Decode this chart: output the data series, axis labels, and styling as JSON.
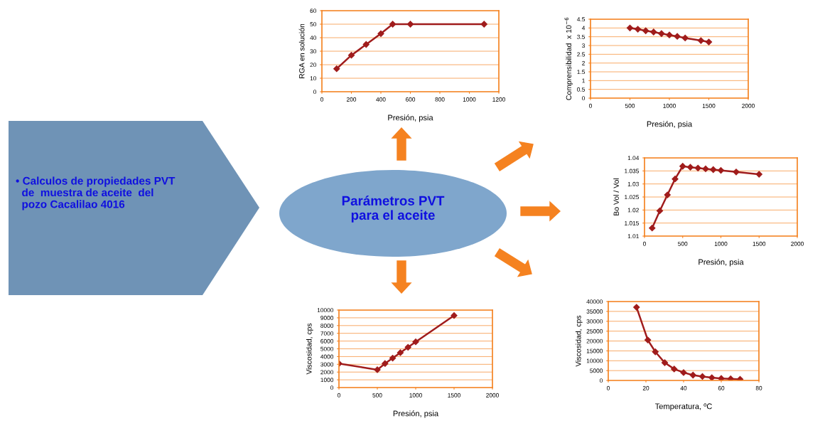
{
  "chart_data": [
    {
      "type": "other",
      "annotations": [
        "• Calculos de propiedades PVT\n  de  muestra de aceite  del\n  pozo Cacalilao 4016",
        "Parámetros PVT\npara el aceite"
      ]
    },
    {
      "type": "line",
      "xlabel": "Presión, psia",
      "ylabel": "RGA en solución",
      "x": [
        100,
        200,
        300,
        400,
        480,
        600,
        1100
      ],
      "values": [
        17,
        27,
        35,
        43,
        50,
        50,
        50
      ],
      "color": "#a01c1c",
      "marker": "diamond",
      "xlim": [
        0,
        1200
      ],
      "xticks": [
        0,
        200,
        400,
        600,
        800,
        1000,
        1200
      ],
      "ylim": [
        0,
        60
      ],
      "yticks": [
        0,
        10,
        20,
        30,
        40,
        50,
        60
      ],
      "grid": "y"
    },
    {
      "type": "line",
      "xlabel": "Presión, psia",
      "ylabel": "Comprensibilidad  x 10$^{−6}$",
      "x": [
        500,
        600,
        700,
        800,
        900,
        1000,
        1100,
        1200,
        1400,
        1500
      ],
      "values": [
        4.0,
        3.93,
        3.84,
        3.77,
        3.68,
        3.6,
        3.52,
        3.43,
        3.28,
        3.2
      ],
      "color": "#a01c1c",
      "marker": "diamond",
      "xlim": [
        0,
        2000
      ],
      "xticks": [
        0,
        500,
        1000,
        1500,
        2000
      ],
      "ylim": [
        0,
        4.5
      ],
      "yticks": [
        0,
        0.5,
        1,
        1.5,
        2,
        2.5,
        3,
        3.5,
        4,
        4.5
      ],
      "grid": "y"
    },
    {
      "type": "line",
      "xlabel": "Presión, psia",
      "ylabel": "Bo Vol / Vol",
      "x": [
        100,
        200,
        300,
        400,
        500,
        600,
        700,
        800,
        900,
        1000,
        1200,
        1500
      ],
      "values": [
        1.0131,
        1.0197,
        1.0258,
        1.0319,
        1.0368,
        1.0364,
        1.0361,
        1.0358,
        1.0355,
        1.0352,
        1.0346,
        1.0337
      ],
      "color": "#a01c1c",
      "marker": "diamond",
      "xlim": [
        0,
        2000
      ],
      "xticks": [
        0,
        500,
        1000,
        1500,
        2000
      ],
      "ylim": [
        1.01,
        1.04
      ],
      "yticks": [
        1.01,
        1.015,
        1.02,
        1.025,
        1.03,
        1.035,
        1.04
      ],
      "grid": "y"
    },
    {
      "type": "line",
      "xlabel": "Presión, psia",
      "ylabel": "Viscosidad, cps",
      "x": [
        0,
        500,
        600,
        700,
        800,
        900,
        1000,
        1500
      ],
      "values": [
        3100,
        2300,
        3100,
        3800,
        4500,
        5200,
        5900,
        9300
      ],
      "color": "#a01c1c",
      "marker": "diamond",
      "xlim": [
        0,
        2000
      ],
      "xticks": [
        0,
        500,
        1000,
        1500,
        2000
      ],
      "ylim": [
        0,
        10000
      ],
      "yticks": [
        0,
        1000,
        2000,
        3000,
        4000,
        5000,
        6000,
        7000,
        8000,
        9000,
        10000
      ],
      "grid": "y"
    },
    {
      "type": "line",
      "xlabel": "Temperatura, ºC",
      "ylabel": "Viscosidad, cps",
      "x": [
        15,
        21,
        25,
        30,
        35,
        40,
        45,
        50,
        55,
        60,
        65,
        70
      ],
      "values": [
        37100,
        20500,
        14500,
        9000,
        5800,
        4000,
        2700,
        2000,
        1400,
        1000,
        800,
        600
      ],
      "color": "#a01c1c",
      "marker": "diamond",
      "xlim": [
        0,
        80
      ],
      "xticks": [
        0,
        20,
        40,
        60,
        80
      ],
      "ylim": [
        0,
        40000
      ],
      "yticks": [
        0,
        5000,
        10000,
        15000,
        20000,
        25000,
        30000,
        35000,
        40000
      ],
      "grid": "y"
    }
  ]
}
